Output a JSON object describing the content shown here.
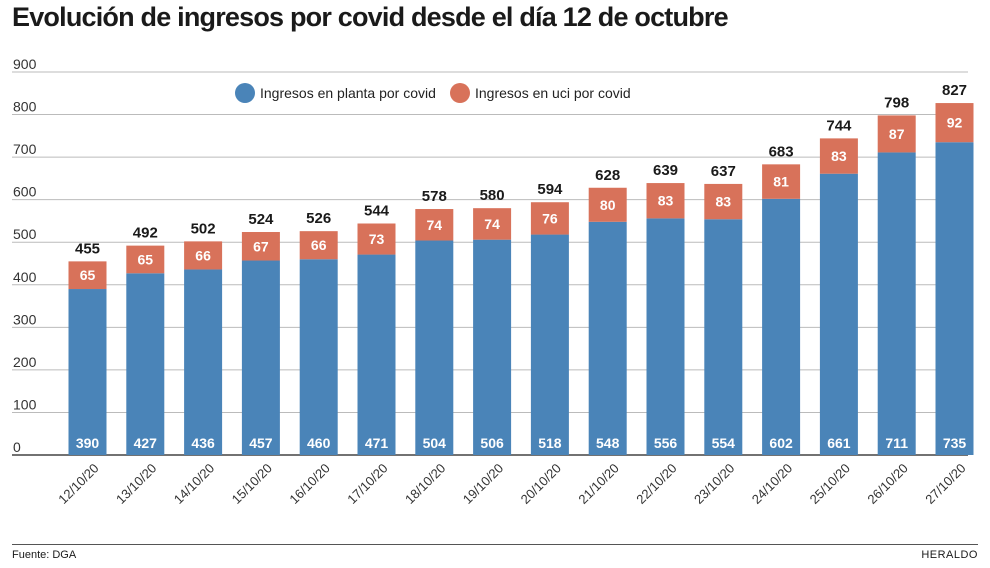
{
  "title": "Evolución de ingresos por covid desde el día 12 de octubre",
  "source": "Fuente: DGA",
  "brand": "HERALDO",
  "colors": {
    "planta": "#4a84b8",
    "uci": "#d8725a",
    "grid": "#bbbbbb",
    "axis": "#444444"
  },
  "chart_data": {
    "type": "bar",
    "stacked": true,
    "categories": [
      "12/10/20",
      "13/10/20",
      "14/10/20",
      "15/10/20",
      "16/10/20",
      "17/10/20",
      "18/10/20",
      "19/10/20",
      "20/10/20",
      "21/10/20",
      "22/10/20",
      "23/10/20",
      "24/10/20",
      "25/10/20",
      "26/10/20",
      "27/10/20"
    ],
    "series": [
      {
        "name": "Ingresos en planta por covid",
        "values": [
          390,
          427,
          436,
          457,
          460,
          471,
          504,
          506,
          518,
          548,
          556,
          554,
          602,
          661,
          711,
          735
        ]
      },
      {
        "name": "Ingresos en uci por covid",
        "values": [
          65,
          65,
          66,
          67,
          66,
          73,
          74,
          74,
          76,
          80,
          83,
          83,
          81,
          83,
          87,
          92
        ]
      }
    ],
    "totals": [
      455,
      492,
      502,
      524,
      526,
      544,
      578,
      580,
      594,
      628,
      639,
      637,
      683,
      744,
      798,
      827
    ],
    "ylim": [
      0,
      900
    ],
    "yticks": [
      0,
      100,
      200,
      300,
      400,
      500,
      600,
      700,
      800,
      900
    ],
    "legend_position": "top-center"
  }
}
